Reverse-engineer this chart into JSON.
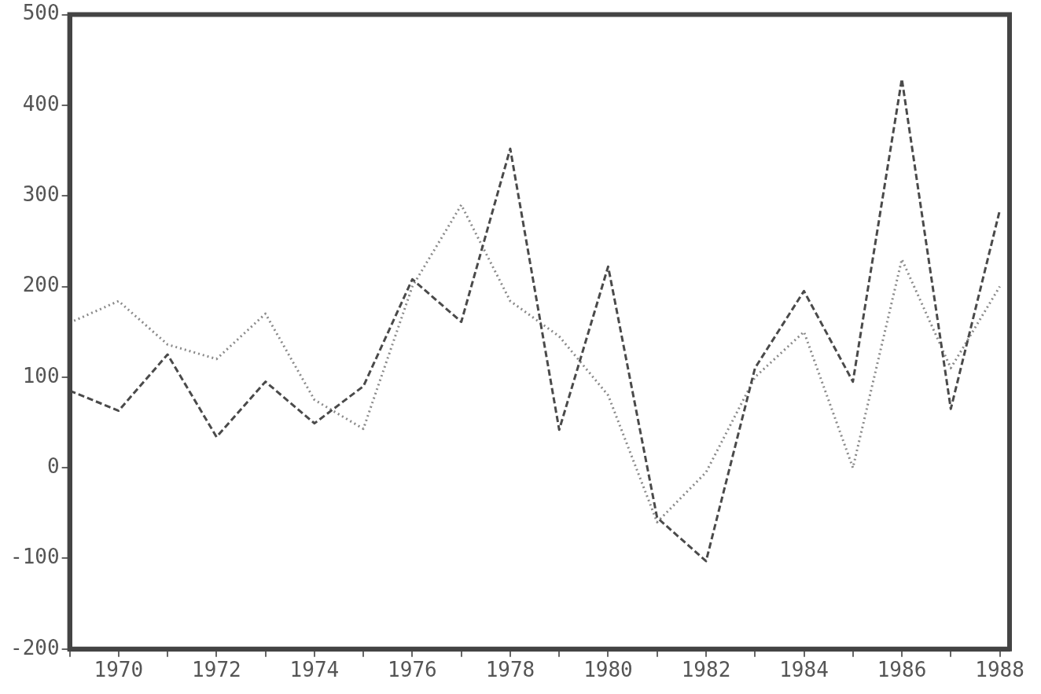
{
  "chart_data": {
    "type": "line",
    "x": [
      1969,
      1970,
      1971,
      1972,
      1973,
      1974,
      1975,
      1976,
      1977,
      1978,
      1979,
      1980,
      1981,
      1982,
      1983,
      1984,
      1985,
      1986,
      1987,
      1988
    ],
    "series": [
      {
        "color": "#4a4a4a",
        "line_style": "dashed",
        "values": [
          85,
          63,
          125,
          34,
          95,
          49,
          90,
          208,
          161,
          352,
          42,
          222,
          -55,
          -103,
          110,
          195,
          95,
          429,
          65,
          284
        ]
      },
      {
        "color": "#8a8a8a",
        "line_style": "dotted",
        "values": [
          160,
          184,
          136,
          120,
          170,
          75,
          43,
          200,
          290,
          184,
          145,
          80,
          -60,
          -5,
          100,
          150,
          0,
          230,
          110,
          200
        ]
      }
    ],
    "xlim": [
      1969,
      1988.2
    ],
    "ylim": [
      -200,
      500
    ],
    "xticks": [
      {
        "value": 1969,
        "label": null
      },
      1970,
      {
        "value": 1971,
        "label": null
      },
      1972,
      {
        "value": 1973,
        "label": null
      },
      1974,
      {
        "value": 1975,
        "label": null
      },
      1976,
      {
        "value": 1977,
        "label": null
      },
      1978,
      {
        "value": 1979,
        "label": null
      },
      1980,
      {
        "value": 1981,
        "label": null
      },
      1982,
      {
        "value": 1983,
        "label": null
      },
      1984,
      {
        "value": 1985,
        "label": null
      },
      1986,
      {
        "value": 1987,
        "label": null
      },
      1988
    ],
    "yticks": [
      -200,
      -100,
      0,
      100,
      200,
      300,
      400,
      500
    ],
    "grid": false,
    "legend": false,
    "marker": "none"
  }
}
